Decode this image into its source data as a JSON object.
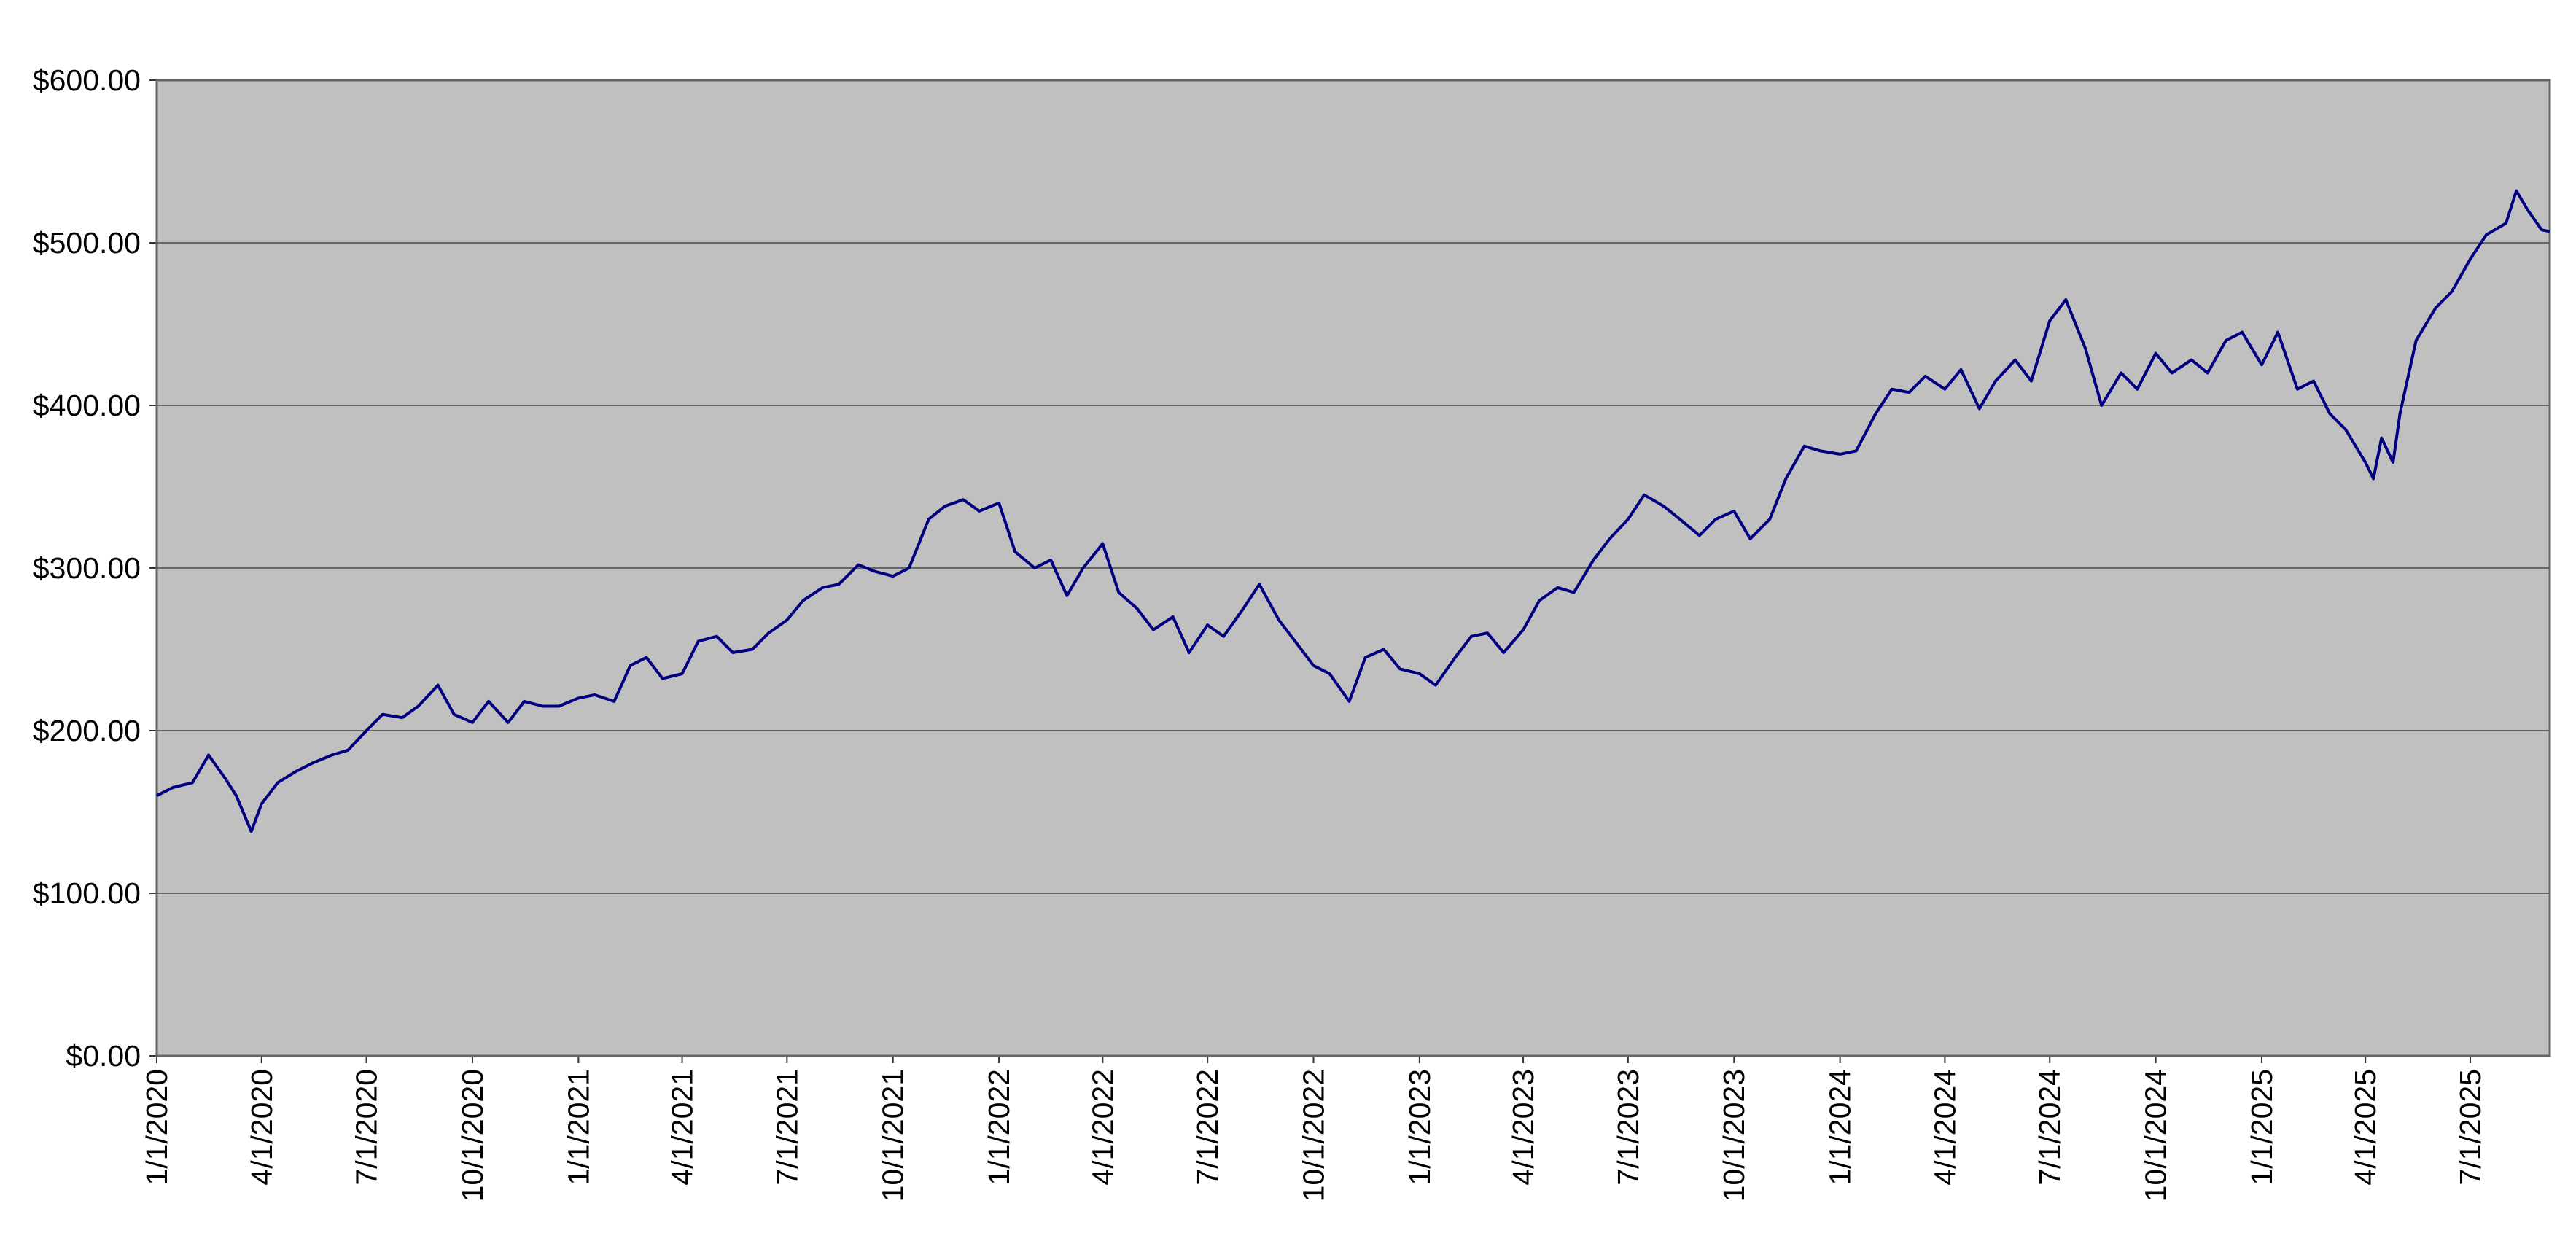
{
  "chart_data": {
    "type": "line",
    "x": [
      "1/1/2020",
      "1/15/2020",
      "2/1/2020",
      "2/15/2020",
      "3/1/2020",
      "3/10/2020",
      "3/23/2020",
      "4/1/2020",
      "4/15/2020",
      "5/1/2020",
      "5/15/2020",
      "6/1/2020",
      "6/15/2020",
      "7/1/2020",
      "7/15/2020",
      "8/1/2020",
      "8/15/2020",
      "9/1/2020",
      "9/15/2020",
      "10/1/2020",
      "10/15/2020",
      "11/1/2020",
      "11/15/2020",
      "12/1/2020",
      "12/15/2020",
      "1/1/2021",
      "1/15/2021",
      "2/1/2021",
      "2/15/2021",
      "3/1/2021",
      "3/15/2021",
      "4/1/2021",
      "4/15/2021",
      "5/1/2021",
      "5/15/2021",
      "6/1/2021",
      "6/15/2021",
      "7/1/2021",
      "7/15/2021",
      "8/1/2021",
      "8/15/2021",
      "9/1/2021",
      "9/15/2021",
      "10/1/2021",
      "10/15/2021",
      "11/1/2021",
      "11/15/2021",
      "12/1/2021",
      "12/15/2021",
      "1/1/2022",
      "1/15/2022",
      "2/1/2022",
      "2/15/2022",
      "3/1/2022",
      "3/15/2022",
      "4/1/2022",
      "4/15/2022",
      "5/1/2022",
      "5/15/2022",
      "6/1/2022",
      "6/15/2022",
      "7/1/2022",
      "7/15/2022",
      "8/1/2022",
      "8/15/2022",
      "9/1/2022",
      "9/15/2022",
      "10/1/2022",
      "10/15/2022",
      "11/1/2022",
      "11/15/2022",
      "12/1/2022",
      "12/15/2022",
      "1/1/2023",
      "1/15/2023",
      "2/1/2023",
      "2/15/2023",
      "3/1/2023",
      "3/15/2023",
      "4/1/2023",
      "4/15/2023",
      "5/1/2023",
      "5/15/2023",
      "6/1/2023",
      "6/15/2023",
      "7/1/2023",
      "7/15/2023",
      "8/1/2023",
      "8/15/2023",
      "9/1/2023",
      "9/15/2023",
      "10/1/2023",
      "10/15/2023",
      "11/1/2023",
      "11/15/2023",
      "12/1/2023",
      "12/15/2023",
      "1/1/2024",
      "1/15/2024",
      "2/1/2024",
      "2/15/2024",
      "3/1/2024",
      "3/15/2024",
      "4/1/2024",
      "4/15/2024",
      "5/1/2024",
      "5/15/2024",
      "6/1/2024",
      "6/15/2024",
      "7/1/2024",
      "7/15/2024",
      "8/1/2024",
      "8/15/2024",
      "9/1/2024",
      "9/15/2024",
      "10/1/2024",
      "10/15/2024",
      "11/1/2024",
      "11/15/2024",
      "12/1/2024",
      "12/15/2024",
      "1/1/2025",
      "1/15/2025",
      "2/1/2025",
      "2/15/2025",
      "3/1/2025",
      "3/15/2025",
      "4/1/2025",
      "4/8/2025",
      "4/15/2025",
      "4/25/2025",
      "5/1/2025",
      "5/15/2025",
      "6/1/2025",
      "6/15/2025",
      "7/1/2025",
      "7/15/2025",
      "8/1/2025",
      "8/10/2025",
      "8/20/2025",
      "9/1/2025",
      "9/8/2025"
    ],
    "values": [
      160,
      165,
      168,
      185,
      170,
      160,
      138,
      155,
      168,
      175,
      180,
      185,
      188,
      200,
      210,
      208,
      215,
      228,
      210,
      205,
      218,
      205,
      218,
      215,
      215,
      220,
      222,
      218,
      240,
      245,
      232,
      235,
      255,
      258,
      248,
      250,
      260,
      268,
      280,
      288,
      290,
      302,
      298,
      295,
      300,
      330,
      338,
      342,
      335,
      340,
      310,
      300,
      305,
      283,
      300,
      315,
      285,
      275,
      262,
      270,
      248,
      265,
      258,
      275,
      290,
      268,
      255,
      240,
      235,
      218,
      245,
      250,
      238,
      235,
      228,
      245,
      258,
      260,
      248,
      262,
      280,
      288,
      285,
      305,
      318,
      330,
      345,
      338,
      330,
      320,
      330,
      335,
      318,
      330,
      355,
      375,
      372,
      370,
      372,
      395,
      410,
      408,
      418,
      410,
      422,
      398,
      415,
      428,
      415,
      452,
      465,
      435,
      400,
      420,
      410,
      432,
      420,
      428,
      420,
      440,
      445,
      425,
      445,
      410,
      415,
      395,
      385,
      365,
      355,
      380,
      365,
      395,
      440,
      460,
      470,
      490,
      505,
      512,
      532,
      520,
      508,
      507
    ],
    "color": "#000080",
    "xlim": [
      "1/1/2020",
      "9/8/2025"
    ],
    "xticks": [
      "1/1/2020",
      "4/1/2020",
      "7/1/2020",
      "10/1/2020",
      "1/1/2021",
      "4/1/2021",
      "7/1/2021",
      "10/1/2021",
      "1/1/2022",
      "4/1/2022",
      "7/1/2022",
      "10/1/2022",
      "1/1/2023",
      "4/1/2023",
      "7/1/2023",
      "10/1/2023",
      "1/1/2024",
      "4/1/2024",
      "7/1/2024",
      "10/1/2024",
      "1/1/2025",
      "4/1/2025",
      "7/1/2025"
    ],
    "ylim": [
      0,
      600
    ],
    "yticks": [
      {
        "value": 0,
        "label": "$0.00"
      },
      {
        "value": 100,
        "label": "$100.00"
      },
      {
        "value": 200,
        "label": "$200.00"
      },
      {
        "value": 300,
        "label": "$300.00"
      },
      {
        "value": 400,
        "label": "$400.00"
      },
      {
        "value": 500,
        "label": "$500.00"
      },
      {
        "value": 600,
        "label": "$600.00"
      }
    ],
    "grid": true
  }
}
